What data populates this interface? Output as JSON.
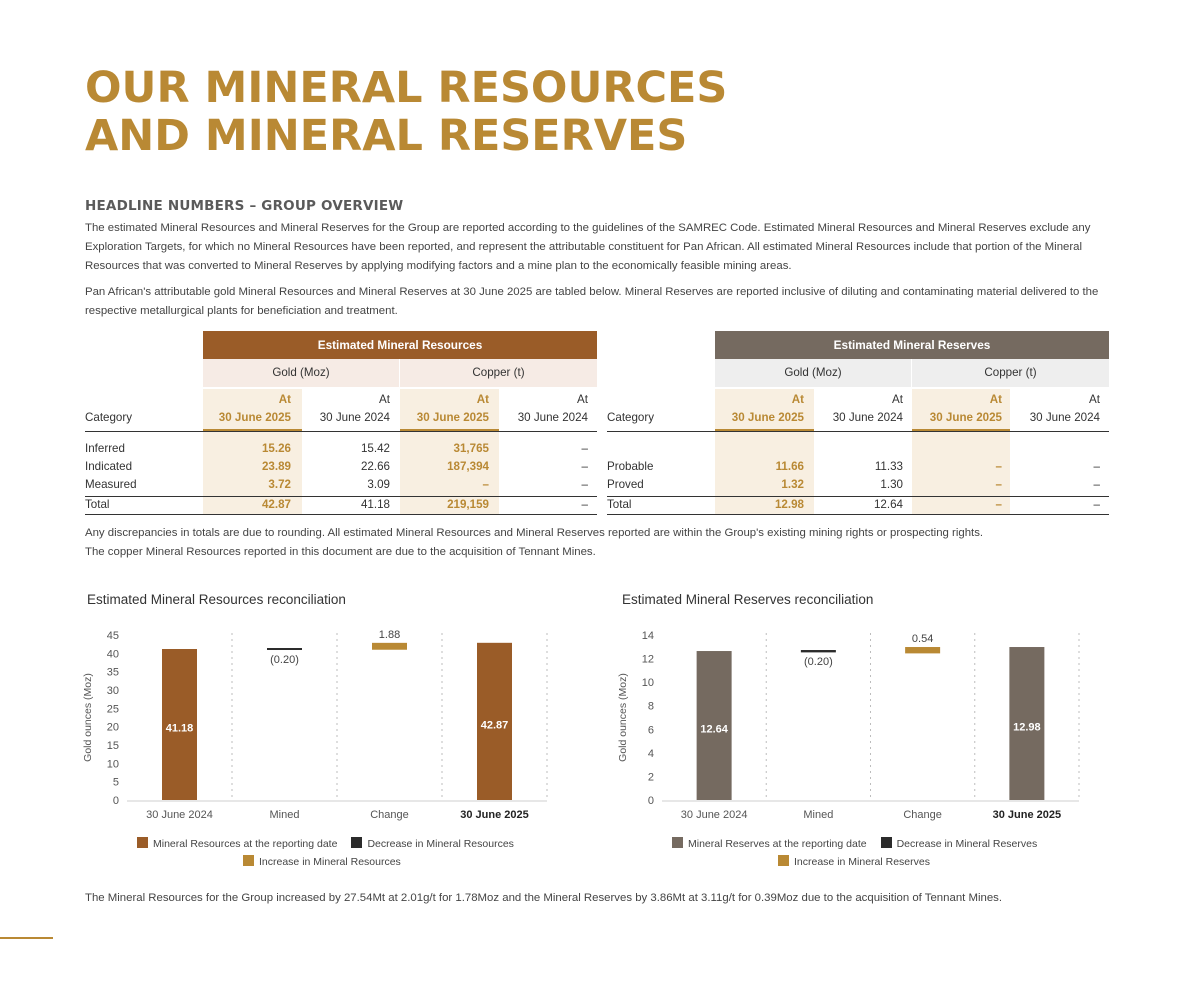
{
  "title": {
    "line1": "OUR MINERAL RESOURCES",
    "line2": "AND MINERAL RESERVES"
  },
  "section_heading": "HEADLINE NUMBERS – GROUP OVERVIEW",
  "paragraphs": {
    "p1": "The estimated Mineral Resources and Mineral Reserves for the Group are reported according to the guidelines of the SAMREC Code. Estimated Mineral Resources and Mineral Reserves exclude any Exploration Targets, for which no Mineral Resources have been reported, and represent the attributable constituent for Pan African. All estimated Mineral Resources include that portion of the Mineral Resources that was converted to Mineral Reserves by applying modifying factors and a mine plan to the economically feasible mining areas.",
    "p2": "Pan African's attributable gold Mineral Resources and Mineral Reserves at 30 June 2025 are tabled below. Mineral Reserves are reported inclusive of diluting and contaminating material delivered to the respective metallurgical plants for beneficiation and treatment.",
    "p3a": "Any discrepancies in totals are due to rounding. All estimated Mineral Resources and Mineral Reserves reported are within the Group's existing mining rights or prospecting rights.",
    "p3b": "The copper Mineral Resources reported in this document are due to the acquisition of Tennant Mines."
  },
  "resources_table": {
    "band": "Estimated Mineral Resources",
    "gold_label": "Gold (Moz)",
    "copper_label": "Copper (t)",
    "at": "At",
    "col_2025": "30 June 2025",
    "col_2024": "30 June 2024",
    "category_label": "Category",
    "rows": [
      {
        "category": "Inferred",
        "gold_2025": "15.26",
        "gold_2024": "15.42",
        "copper_2025": "31,765",
        "copper_2024": "–"
      },
      {
        "category": "Indicated",
        "gold_2025": "23.89",
        "gold_2024": "22.66",
        "copper_2025": "187,394",
        "copper_2024": "–"
      },
      {
        "category": "Measured",
        "gold_2025": "3.72",
        "gold_2024": "3.09",
        "copper_2025": "–",
        "copper_2024": "–"
      },
      {
        "category": "Total",
        "gold_2025": "42.87",
        "gold_2024": "41.18",
        "copper_2025": "219,159",
        "copper_2024": "–"
      }
    ]
  },
  "reserves_table": {
    "band": "Estimated Mineral Reserves",
    "gold_label": "Gold (Moz)",
    "copper_label": "Copper (t)",
    "at": "At",
    "col_2025": "30 June 2025",
    "col_2024": "30 June 2024",
    "category_label": "Category",
    "rows": [
      {
        "category": "",
        "gold_2025": "",
        "gold_2024": "",
        "copper_2025": "",
        "copper_2024": ""
      },
      {
        "category": "Probable",
        "gold_2025": "11.66",
        "gold_2024": "11.33",
        "copper_2025": "–",
        "copper_2024": "–"
      },
      {
        "category": "Proved",
        "gold_2025": "1.32",
        "gold_2024": "1.30",
        "copper_2025": "–",
        "copper_2024": "–"
      },
      {
        "category": "Total",
        "gold_2025": "12.98",
        "gold_2024": "12.64",
        "copper_2025": "–",
        "copper_2024": "–"
      }
    ]
  },
  "colors": {
    "gold": "#b98934",
    "brown": "#9a5c28",
    "grey_brown": "#756a60",
    "dark": "#2b2b2b",
    "resources_sub_bg": "#f6ebe5",
    "reserves_sub_bg": "#eeeeee",
    "highlight_2025": "#f8efe1"
  },
  "chart_data": [
    {
      "type": "bar",
      "title": "Estimated Mineral Resources reconciliation",
      "ylabel": "Gold ounces (Moz)",
      "ylim": [
        0,
        45
      ],
      "yticks": [
        0,
        5,
        10,
        15,
        20,
        25,
        30,
        35,
        40,
        45
      ],
      "categories": [
        "30 June 2024",
        "Mined",
        "Change",
        "30 June 2025"
      ],
      "bars": [
        {
          "category": "30 June 2024",
          "kind": "total",
          "start": 0,
          "end": 41.18,
          "label": "41.18"
        },
        {
          "category": "Mined",
          "kind": "decrease",
          "start": 41.18,
          "end": 40.98,
          "label": "(0.20)"
        },
        {
          "category": "Change",
          "kind": "increase",
          "start": 40.98,
          "end": 42.86,
          "label": "1.88"
        },
        {
          "category": "30 June 2025",
          "kind": "total",
          "start": 0,
          "end": 42.87,
          "label": "42.87"
        }
      ],
      "legend": [
        "Mineral Resources at the reporting date",
        "Decrease in Mineral Resources",
        "Increase in Mineral Resources"
      ],
      "legend_placement": "bottom",
      "grid": "vertical dotted separators"
    },
    {
      "type": "bar",
      "title": "Estimated Mineral Reserves reconciliation",
      "ylabel": "Gold ounces (Moz)",
      "ylim": [
        0,
        14
      ],
      "yticks": [
        0,
        2,
        4,
        6,
        8,
        10,
        12,
        14
      ],
      "categories": [
        "30 June 2024",
        "Mined",
        "Change",
        "30 June 2025"
      ],
      "bars": [
        {
          "category": "30 June 2024",
          "kind": "total",
          "start": 0,
          "end": 12.64,
          "label": "12.64"
        },
        {
          "category": "Mined",
          "kind": "decrease",
          "start": 12.64,
          "end": 12.44,
          "label": "(0.20)"
        },
        {
          "category": "Change",
          "kind": "increase",
          "start": 12.44,
          "end": 12.98,
          "label": "0.54"
        },
        {
          "category": "30 June 2025",
          "kind": "total",
          "start": 0,
          "end": 12.98,
          "label": "12.98"
        }
      ],
      "legend": [
        "Mineral Reserves at the reporting date",
        "Decrease in Mineral Reserves",
        "Increase in Mineral Reserves"
      ],
      "legend_placement": "bottom",
      "grid": "vertical dotted separators"
    }
  ],
  "footnote": "The Mineral Resources for the Group increased by 27.54Mt at 2.01g/t for 1.78Moz and the Mineral Reserves by 3.86Mt at 3.11g/t for 0.39Moz due to the acquisition of Tennant Mines."
}
